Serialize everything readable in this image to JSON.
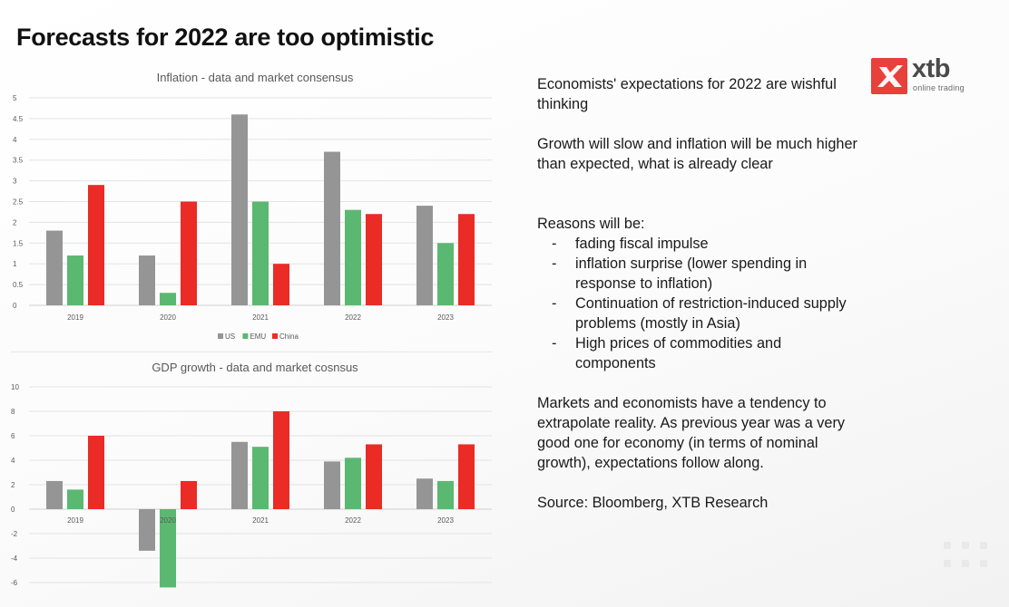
{
  "slide": {
    "title": "Forecasts for 2022 are too optimistic"
  },
  "logo": {
    "wordmark": "xtb",
    "tagline": "online trading",
    "brand_color": "#e8403a"
  },
  "text": {
    "para1": "Economists' expectations for 2022 are wishful thinking",
    "para2": "Growth will slow and inflation will be much higher than expected, what is already clear",
    "reasons_heading": "Reasons will be:",
    "reasons": [
      "fading fiscal impulse",
      "inflation surprise (lower spending in response to inflation)",
      "Continuation of restriction-induced supply problems (mostly in Asia)",
      "High prices of commodities and components"
    ],
    "para3": "Markets and economists have a tendency to extrapolate reality. As previous year was a very good one for economy (in terms of nominal growth), expectations follow along.",
    "source": "Source: Bloomberg, XTB Research"
  },
  "colors": {
    "US": "#959595",
    "EMU": "#5bb870",
    "China": "#ea2b26"
  },
  "chart_data": [
    {
      "type": "bar",
      "title": "Inflation - data and market consensus",
      "categories": [
        "2019",
        "2020",
        "2021",
        "2022",
        "2023"
      ],
      "series": [
        {
          "name": "US",
          "values": [
            1.8,
            1.2,
            4.6,
            3.7,
            2.4
          ]
        },
        {
          "name": "EMU",
          "values": [
            1.2,
            0.3,
            2.5,
            2.3,
            1.5
          ]
        },
        {
          "name": "China",
          "values": [
            2.9,
            2.5,
            1.0,
            2.2,
            2.2
          ]
        }
      ],
      "ylim": [
        0,
        5
      ],
      "yticks": [
        "0",
        "0.5",
        "1",
        "1.5",
        "2",
        "2.5",
        "3",
        "3.5",
        "4",
        "4.5",
        "5"
      ],
      "grid": true,
      "legend": "bottom"
    },
    {
      "type": "bar",
      "title": "GDP growth - data and market cosnsus",
      "categories": [
        "2019",
        "2020",
        "2021",
        "2022",
        "2023"
      ],
      "series": [
        {
          "name": "US",
          "values": [
            2.3,
            -3.4,
            5.5,
            3.9,
            2.5
          ]
        },
        {
          "name": "EMU",
          "values": [
            1.6,
            -6.4,
            5.1,
            4.2,
            2.3
          ]
        },
        {
          "name": "China",
          "values": [
            6.0,
            2.3,
            8.0,
            5.3,
            5.3
          ]
        }
      ],
      "ylim": [
        -6,
        10
      ],
      "yticks": [
        "-6",
        "-4",
        "-2",
        "0",
        "2",
        "4",
        "6",
        "8",
        "10"
      ],
      "grid": true,
      "legend": "none"
    }
  ]
}
